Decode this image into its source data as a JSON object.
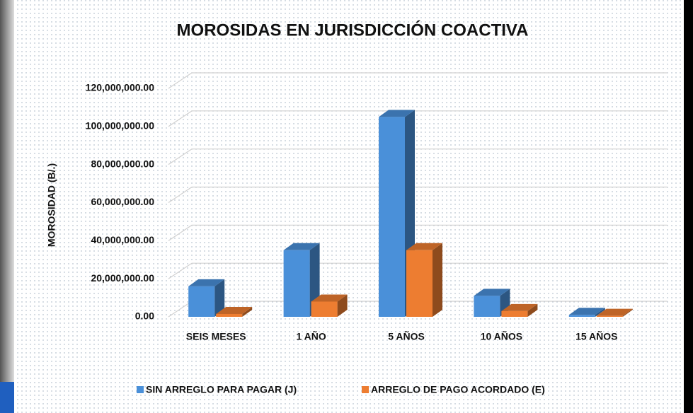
{
  "chart_data": {
    "type": "bar3d",
    "title": "MOROSIDAS EN JURISDICCIÓN COACTIVA",
    "y_label": "MOROSIDAD  (B/.)",
    "categories": [
      "SEIS MESES",
      "1 AÑO",
      "5 AÑOS",
      "10 AÑOS",
      "15 AÑOS"
    ],
    "series": [
      {
        "name": "SIN ARREGLO PARA PAGAR  (J)",
        "color": "#4a90d9",
        "values": [
          16000000,
          35000000,
          105000000,
          11000000,
          1000000
        ]
      },
      {
        "name": "ARREGLO DE PAGO ACORDADO (E)",
        "color": "#ed7d31",
        "values": [
          1500000,
          8000000,
          35000000,
          3000000,
          500000
        ]
      }
    ],
    "ylim": [
      0,
      120000000
    ],
    "yticks": [
      {
        "value": 0,
        "label": "0.00"
      },
      {
        "value": 20000000,
        "label": "20,000,000.00"
      },
      {
        "value": 40000000,
        "label": "40,000,000.00"
      },
      {
        "value": 60000000,
        "label": "60,000,000.00"
      },
      {
        "value": 80000000,
        "label": "80,000,000.00"
      },
      {
        "value": 100000000,
        "label": "100,000,000.00"
      },
      {
        "value": 120000000,
        "label": "120,000,000.00"
      }
    ],
    "grid": true
  }
}
